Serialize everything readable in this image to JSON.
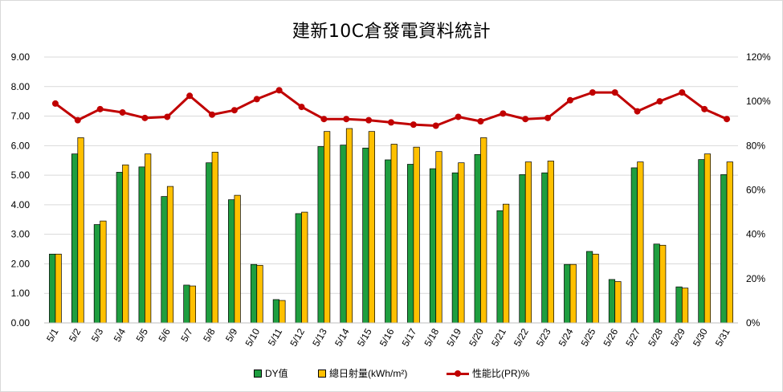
{
  "chart_data": {
    "type": "bar",
    "title": "建新10C倉發電資料統計",
    "categories": [
      "5/1",
      "5/2",
      "5/3",
      "5/4",
      "5/5",
      "5/6",
      "5/7",
      "5/8",
      "5/9",
      "5/10",
      "5/11",
      "5/12",
      "5/13",
      "5/14",
      "5/15",
      "5/16",
      "5/17",
      "5/18",
      "5/19",
      "5/20",
      "5/21",
      "5/22",
      "5/23",
      "5/24",
      "5/25",
      "5/26",
      "5/27",
      "5/28",
      "5/29",
      "5/30",
      "5/31"
    ],
    "y_left": {
      "ylim": [
        0,
        9
      ],
      "ticks": [
        "0.00",
        "1.00",
        "2.00",
        "3.00",
        "4.00",
        "5.00",
        "6.00",
        "7.00",
        "8.00",
        "9.00"
      ]
    },
    "y_right": {
      "ylim": [
        0,
        120
      ],
      "ticks": [
        "0%",
        "20%",
        "40%",
        "60%",
        "80%",
        "100%",
        "120%"
      ]
    },
    "series": [
      {
        "name": "DY值",
        "type": "bar",
        "axis": "left",
        "color": "#1e9e3f",
        "values": [
          2.33,
          5.72,
          3.33,
          5.1,
          5.28,
          4.28,
          1.28,
          5.42,
          4.17,
          1.98,
          0.79,
          3.7,
          5.97,
          6.02,
          5.92,
          5.52,
          5.37,
          5.22,
          5.08,
          5.7,
          3.8,
          5.02,
          5.08,
          1.98,
          2.42,
          1.47,
          5.25,
          2.67,
          1.22,
          5.53,
          5.02
        ]
      },
      {
        "name": "總日射量(kWh/m²)",
        "type": "bar",
        "axis": "left",
        "color": "#ffc000",
        "values": [
          2.33,
          6.27,
          3.45,
          5.35,
          5.72,
          4.62,
          1.25,
          5.78,
          4.32,
          1.95,
          0.76,
          3.75,
          6.48,
          6.58,
          6.48,
          6.05,
          5.95,
          5.8,
          5.42,
          6.27,
          4.02,
          5.45,
          5.48,
          1.98,
          2.33,
          1.4,
          5.45,
          2.63,
          1.18,
          5.72,
          5.45
        ]
      },
      {
        "name": "性能比(PR)%",
        "type": "line",
        "axis": "right",
        "color": "#c00000",
        "values": [
          99,
          91.5,
          96.5,
          95,
          92.5,
          93,
          102.5,
          94,
          96,
          101,
          105,
          97.5,
          92,
          92,
          91.5,
          90.5,
          89.5,
          89,
          93,
          91,
          94.5,
          92,
          92.5,
          100.5,
          104,
          104,
          95.5,
          100,
          104,
          96.5,
          92
        ]
      }
    ],
    "grid": true,
    "legend_position": "bottom"
  }
}
